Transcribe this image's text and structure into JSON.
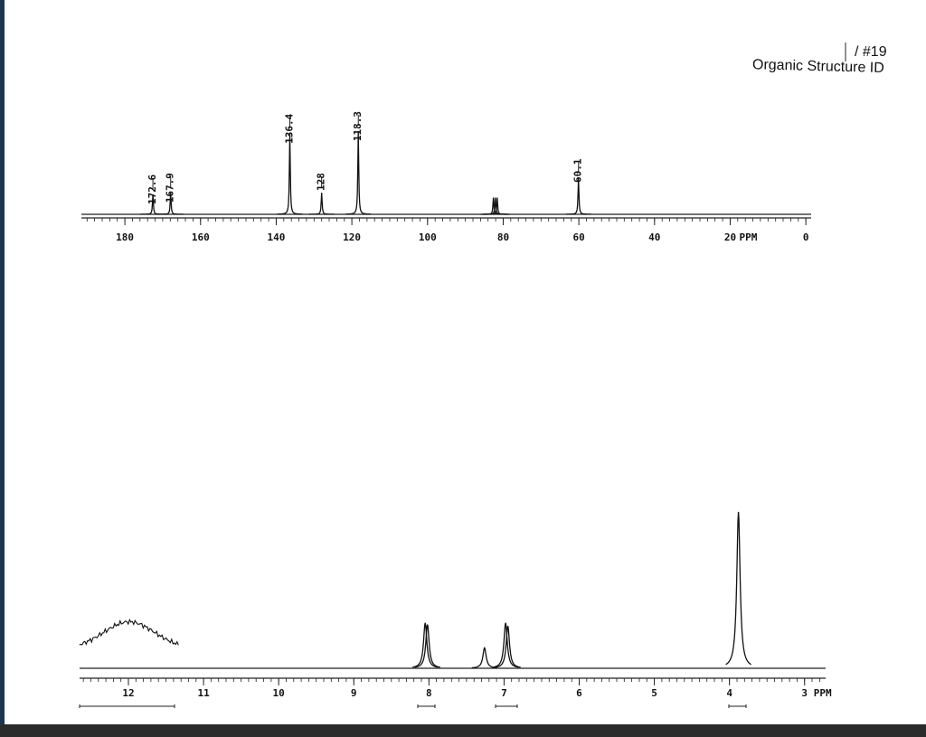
{
  "header": {
    "number": "/ #19",
    "title": "Organic Structure ID"
  },
  "chart_data": [
    {
      "type": "spectrum",
      "xlim": [
        191.5,
        -1.4
      ],
      "xticks": [
        180,
        160,
        140,
        120,
        100,
        80,
        60,
        40,
        20,
        0
      ],
      "x_label": "PPM",
      "xminor": 2,
      "ylim": [
        0,
        100
      ],
      "x": [
        172.6,
        167.9,
        136.4,
        128.0,
        118.3,
        60.1
      ],
      "values": [
        24,
        26,
        97,
        26,
        100,
        43
      ],
      "unlabeled_x": [
        82.6,
        82.1,
        81.6
      ],
      "unlabeled_values": [
        20,
        20,
        20
      ]
    },
    {
      "type": "spectrum",
      "xlim": [
        12.65,
        2.72
      ],
      "xticks": [
        12,
        11,
        10,
        9,
        8,
        7,
        6,
        5,
        4,
        3
      ],
      "x_label": "PPM",
      "xminor": 0.1,
      "ylim": [
        0,
        100
      ],
      "x": [
        8.05,
        8.02,
        7.26,
        6.98,
        6.95,
        3.88
      ],
      "values": [
        29,
        28,
        13,
        29,
        27,
        100
      ],
      "broad_x": [
        11.99
      ],
      "broad_values": [
        17
      ]
    }
  ]
}
